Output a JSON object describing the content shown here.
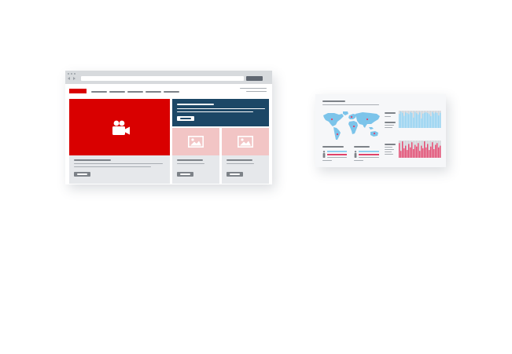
{
  "colors": {
    "brand_red": "#d90000",
    "navy": "#1c4766",
    "pink": "#f2c5c5",
    "card_gray": "#e6e8eb",
    "browser_chrome": "#d7dadd",
    "map_blue": "#7cc4ea",
    "chart_blue": "#8fd0f1",
    "chart_red": "#e0426a",
    "chart_gray": "#cfd2d6",
    "dashboard_bg": "#f6f7f9"
  },
  "icons": {
    "hero": "video-camera-icon",
    "thumb": "image-placeholder-icon",
    "nav_back": "back-arrow-icon",
    "nav_forward": "forward-arrow-icon",
    "person": "person-icon",
    "map": "world-map-icon"
  },
  "dashboard": {
    "top_bars": [
      0.82,
      0.95,
      0.88,
      0.7,
      0.9,
      0.86,
      0.8,
      0.92,
      0.87,
      0.6,
      0.93,
      0.85,
      0.78,
      0.9,
      0.55,
      0.83,
      0.88,
      0.91,
      0.86,
      0.8,
      0.68,
      0.92,
      0.84,
      0.9,
      0.87,
      0.72,
      0.88
    ],
    "bottom_bars": [
      0.85,
      0.4,
      0.95,
      0.55,
      0.7,
      0.45,
      0.8,
      0.6,
      0.9,
      0.5,
      0.75,
      0.65,
      0.85,
      0.4,
      0.7,
      0.55,
      0.95,
      0.6,
      0.8,
      0.45,
      0.65,
      0.9,
      0.5,
      0.75,
      0.85,
      0.6,
      0.7
    ]
  }
}
